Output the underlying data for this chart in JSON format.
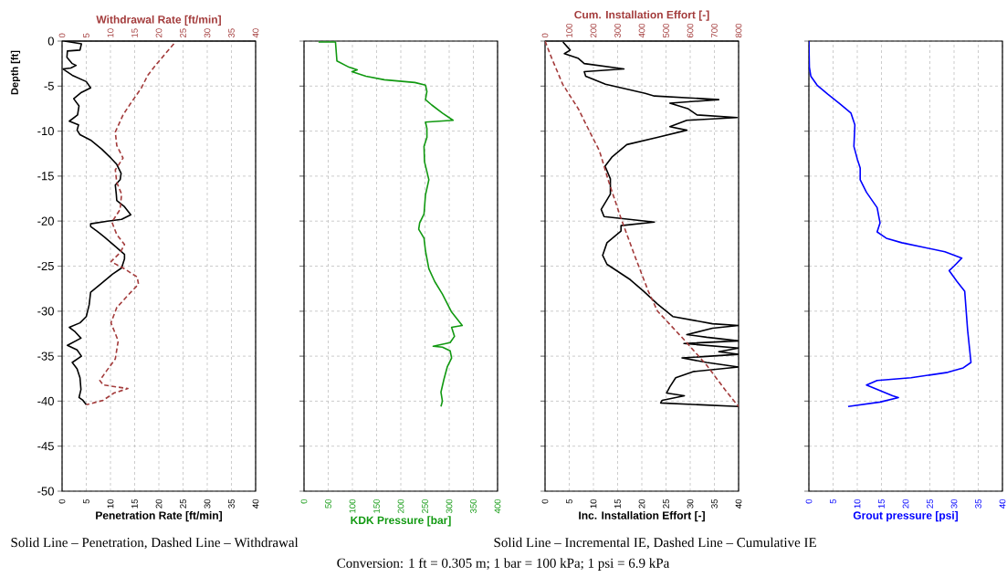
{
  "chart_data": [
    {
      "type": "line",
      "xlabel": "Penetration Rate [ft/min]",
      "x2label": "Withdrawal Rate [ft/min]",
      "ylabel": "Depth [ft]",
      "xlim": [
        0,
        40
      ],
      "xticks": [
        0,
        5,
        10,
        15,
        20,
        25,
        30,
        35,
        40
      ],
      "x2lim": [
        0,
        40
      ],
      "x2ticks": [
        0,
        5,
        10,
        15,
        20,
        25,
        30,
        35,
        40
      ],
      "ylim": [
        -50,
        0
      ],
      "yticks": [
        0,
        -5,
        -10,
        -15,
        -20,
        -25,
        -30,
        -35,
        -40,
        -45,
        -50
      ],
      "grid": true,
      "marker": "none",
      "annotations": [
        "Solid Line – Penetration, Dashed Line – Withdrawal",
        "Conversion: 1 ft = 0.305 m; 1 bar = 100 kPa; 1 psi = 6.9 kPa"
      ],
      "series": [
        {
          "color": "#000000",
          "line_style": "solid",
          "x": [
            0.5,
            4,
            3.7,
            1.1,
            1,
            2.1,
            2.9,
            1.8,
            0.2,
            2.1,
            5,
            5.9,
            4,
            2.4,
            3.5,
            3.2,
            1.5,
            3.4,
            3.1,
            3.7,
            5.9,
            8.2,
            10.1,
            11.3,
            12.2,
            12,
            11,
            11.2,
            11.3,
            12.9,
            14.2,
            12.3,
            9.4,
            5.9,
            5.9,
            7.2,
            8.8,
            11,
            12.9,
            12.9,
            12.3,
            10.4,
            8.2,
            5.9,
            5.6,
            5,
            3.7,
            1.5,
            2.7,
            3.9,
            1.1,
            3.1,
            4,
            2.1,
            3.1,
            3.7,
            3.9,
            3.5,
            4.3,
            5
          ],
          "values": [
            0,
            -0.3,
            -1,
            -1.1,
            -1.8,
            -2.5,
            -2.7,
            -3,
            -3.1,
            -3.8,
            -4.5,
            -5.2,
            -5.7,
            -6.4,
            -7.2,
            -8.2,
            -8.9,
            -9.3,
            -9.9,
            -10.4,
            -11,
            -12,
            -13,
            -13.7,
            -14.7,
            -15.4,
            -16,
            -17,
            -17.7,
            -18.4,
            -19.3,
            -19.8,
            -20,
            -20.3,
            -20.6,
            -21.1,
            -21.8,
            -22.8,
            -23.7,
            -24.2,
            -25.2,
            -25.9,
            -26.9,
            -27.9,
            -29.3,
            -30.6,
            -31.3,
            -31.8,
            -32.3,
            -33,
            -33.8,
            -34.3,
            -35,
            -35.7,
            -36.4,
            -37.4,
            -38.7,
            -39.6,
            -39.9,
            -40.4
          ]
        },
        {
          "color": "#a33b3b",
          "line_style": "dashed",
          "axis": "x2",
          "x": [
            23.1,
            19.6,
            17.7,
            16.4,
            14.2,
            12.6,
            11,
            11.3,
            12.6,
            11,
            11.3,
            12.3,
            12,
            10.3,
            11.3,
            12.9,
            12,
            10.1,
            12.6,
            15.5,
            15.8,
            14.2,
            11.3,
            10.1,
            11.6,
            11,
            9.1,
            7.8,
            8.5,
            13.6,
            10.7,
            8.5,
            5
          ],
          "values": [
            -0.3,
            -2.5,
            -3.8,
            -5.2,
            -6.9,
            -8.2,
            -10.1,
            -11.6,
            -13,
            -14.3,
            -15.7,
            -17,
            -18.7,
            -20.1,
            -21.5,
            -22.6,
            -23.5,
            -24.5,
            -25.2,
            -26.2,
            -27,
            -27.9,
            -29.6,
            -31.3,
            -33.3,
            -35.3,
            -36.7,
            -37.7,
            -38.2,
            -38.6,
            -39.1,
            -39.9,
            -40.4
          ]
        }
      ]
    },
    {
      "type": "line",
      "xlabel": "KDK Pressure [bar]",
      "xlim": [
        0,
        400
      ],
      "xticks": [
        0,
        50,
        100,
        150,
        200,
        250,
        300,
        350,
        400
      ],
      "ylim": [
        -50,
        0
      ],
      "yticks": [
        0,
        -5,
        -10,
        -15,
        -20,
        -25,
        -30,
        -35,
        -40,
        -45,
        -50
      ],
      "tick_labels": "x",
      "grid": true,
      "marker": "none",
      "series": [
        {
          "color": "#119911",
          "line_style": "solid",
          "x": [
            30,
            65,
            68,
            93,
            110,
            99,
            128,
            166,
            229,
            251,
            254,
            251,
            264,
            286,
            308,
            251,
            254,
            254,
            248,
            249,
            258,
            251,
            248,
            239,
            237,
            248,
            251,
            258,
            270,
            286,
            305,
            327,
            305,
            311,
            302,
            267,
            286,
            302,
            305,
            296,
            289,
            283,
            286,
            283
          ],
          "values": [
            -0.1,
            -0.1,
            -2.2,
            -2.9,
            -3.2,
            -3.4,
            -3.9,
            -4.3,
            -4.6,
            -4.9,
            -5.6,
            -6.5,
            -7.1,
            -8,
            -8.8,
            -9,
            -9.7,
            -10.7,
            -11.7,
            -13.4,
            -15.4,
            -17.1,
            -19.2,
            -20.2,
            -20.9,
            -21.9,
            -23.3,
            -25.3,
            -26.7,
            -28.1,
            -30.1,
            -31.6,
            -31.8,
            -32.8,
            -33.5,
            -33.9,
            -34,
            -34.4,
            -35.2,
            -36.2,
            -37.6,
            -39,
            -40,
            -40.6
          ]
        }
      ]
    },
    {
      "type": "line",
      "xlabel": "Inc. Installation Effort [-]",
      "x2label": "Cum. Installation Effort [-]",
      "xlim": [
        0,
        40
      ],
      "xticks": [
        0,
        5,
        10,
        15,
        20,
        25,
        30,
        35,
        40
      ],
      "x2lim": [
        0,
        800
      ],
      "x2ticks": [
        0,
        100,
        200,
        300,
        400,
        500,
        600,
        700,
        800
      ],
      "ylim": [
        -50,
        0
      ],
      "yticks": [
        0,
        -5,
        -10,
        -15,
        -20,
        -25,
        -30,
        -35,
        -40,
        -45,
        -50
      ],
      "tick_labels": "x",
      "grid": true,
      "marker": "none",
      "annotations": [
        "Solid Line – Incremental IE, Dashed Line – Cumulative IE"
      ],
      "series": [
        {
          "color": "#000000",
          "line_style": "solid",
          "x": [
            3.7,
            5.2,
            4,
            6.8,
            8.1,
            16.3,
            8.1,
            8.4,
            12.5,
            20.7,
            22.6,
            35.9,
            25.8,
            29.5,
            31.4,
            39.7,
            29.3,
            25.8,
            29.3,
            23.2,
            16.9,
            13.8,
            12.4,
            13.5,
            13.5,
            11.6,
            12.2,
            22.6,
            15.7,
            15.7,
            12.8,
            11.9,
            12.8,
            17.6,
            20.4,
            23.2,
            26.4,
            34.6,
            40,
            34.6,
            29.3,
            33.4,
            40,
            28.7,
            40,
            35.9,
            40,
            28.3,
            33.4,
            40,
            30.8,
            27,
            25.8,
            25.1,
            28.8,
            24.2,
            23.9,
            40
          ],
          "values": [
            -0.1,
            -1,
            -1.4,
            -1.9,
            -2.5,
            -3.1,
            -3.4,
            -3.9,
            -4.8,
            -5.8,
            -6.1,
            -6.5,
            -6.9,
            -7.5,
            -8.2,
            -8.5,
            -8.8,
            -9.5,
            -9.9,
            -10.7,
            -11.5,
            -12.9,
            -13.9,
            -15.3,
            -17,
            -18.7,
            -19.5,
            -20.1,
            -20.5,
            -21.1,
            -22.4,
            -23.8,
            -24.8,
            -26.5,
            -27.8,
            -29.2,
            -30.6,
            -31.4,
            -31.6,
            -31.9,
            -32.6,
            -32.9,
            -33.3,
            -33.6,
            -34.1,
            -34.5,
            -34.8,
            -35.2,
            -35.7,
            -36.2,
            -36.7,
            -37.4,
            -38.4,
            -39.1,
            -39.4,
            -39.9,
            -40.2,
            -40.6
          ]
        },
        {
          "color": "#a33b3b",
          "line_style": "dashed",
          "axis": "x2",
          "x": [
            0,
            29,
            73,
            137,
            187,
            225,
            263,
            314,
            370,
            427,
            465,
            579,
            668,
            743,
            800
          ],
          "values": [
            0,
            -2,
            -4.8,
            -7.5,
            -10.2,
            -12.2,
            -15.6,
            -19.7,
            -23.8,
            -27.8,
            -30,
            -33.3,
            -36,
            -38.7,
            -40.6
          ]
        }
      ]
    },
    {
      "type": "line",
      "xlabel": "Grout pressure [psi]",
      "xlim": [
        0,
        40
      ],
      "xticks": [
        0,
        5,
        10,
        15,
        20,
        25,
        30,
        35,
        40
      ],
      "ylim": [
        -50,
        0
      ],
      "yticks": [
        0,
        -5,
        -10,
        -15,
        -20,
        -25,
        -30,
        -35,
        -40,
        -45,
        -50
      ],
      "tick_labels": "x",
      "grid": true,
      "marker": "none",
      "series": [
        {
          "color": "#0000ff",
          "line_style": "solid",
          "x": [
            0,
            0.1,
            0.4,
            1.7,
            3.9,
            6.5,
            8.7,
            9.5,
            9.3,
            10,
            10.6,
            10.6,
            11.9,
            14.1,
            14.7,
            14.1,
            16,
            19.2,
            23.6,
            28.1,
            31.6,
            30,
            29,
            30.6,
            32.2,
            32.8,
            33.5,
            31.9,
            28.7,
            21.1,
            14.1,
            11.9,
            14.1,
            17.3,
            18.5,
            14.7,
            8.1
          ],
          "values": [
            0,
            -2.9,
            -3.9,
            -4.9,
            -5.9,
            -7,
            -8,
            -9.3,
            -11.7,
            -13.1,
            -14.1,
            -15.4,
            -16.8,
            -18.5,
            -20.2,
            -21.2,
            -21.9,
            -22.4,
            -22.9,
            -23.4,
            -24.1,
            -25,
            -25.5,
            -26.7,
            -27.8,
            -32.1,
            -35.7,
            -36.3,
            -36.8,
            -37.4,
            -37.7,
            -38.2,
            -38.7,
            -39.4,
            -39.6,
            -40.1,
            -40.6
          ]
        }
      ]
    }
  ]
}
